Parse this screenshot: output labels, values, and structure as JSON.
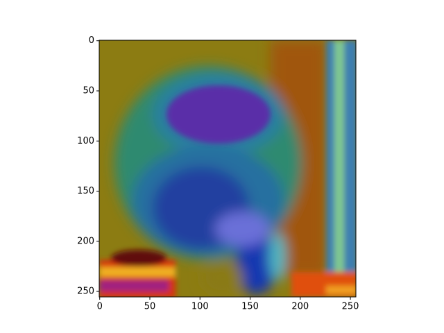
{
  "chart_data": {
    "type": "image",
    "xlim": [
      -0.5,
      255.5
    ],
    "xticks": [
      0,
      50,
      100,
      150,
      200,
      250
    ],
    "ylim": [
      255.5,
      -0.5
    ],
    "yticks": [
      0,
      50,
      100,
      150,
      200,
      250
    ]
  }
}
